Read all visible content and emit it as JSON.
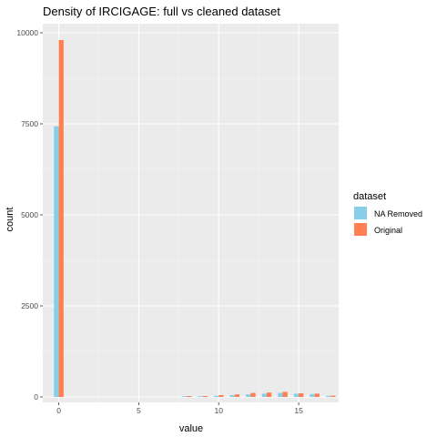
{
  "colors": {
    "panel_bg": "#EBEBEB",
    "grid_major": "#FFFFFF",
    "grid_minor": "#F5F5F5",
    "na_removed": "#87CEEB",
    "original": "#FF7F50",
    "tick_text": "#4D4D4D"
  },
  "chart_data": {
    "type": "bar",
    "title": "Density of IRCIGAGE: full vs cleaned dataset",
    "xlabel": "value",
    "ylabel": "count",
    "xlim": [
      -1,
      17.5
    ],
    "ylim": [
      -150,
      10250
    ],
    "x_ticks": [
      0,
      5,
      10,
      15
    ],
    "x_tick_labels": [
      "0",
      "5",
      "10",
      "15"
    ],
    "y_ticks": [
      0,
      2500,
      5000,
      7500,
      10000
    ],
    "y_tick_labels": [
      "0",
      "2500",
      "5000",
      "7500",
      "10000"
    ],
    "grid": true,
    "legend": {
      "title": "dataset",
      "placement": "right",
      "entries": [
        "NA Removed",
        "Original"
      ]
    },
    "x": [
      0,
      8,
      9,
      10,
      11,
      12,
      13,
      14,
      15,
      16,
      17
    ],
    "series": [
      {
        "name": "NA Removed",
        "values": [
          7430,
          20,
          20,
          30,
          50,
          70,
          90,
          110,
          90,
          80,
          30
        ]
      },
      {
        "name": "Original",
        "values": [
          9800,
          25,
          25,
          50,
          70,
          110,
          120,
          140,
          100,
          90,
          35
        ]
      }
    ]
  }
}
